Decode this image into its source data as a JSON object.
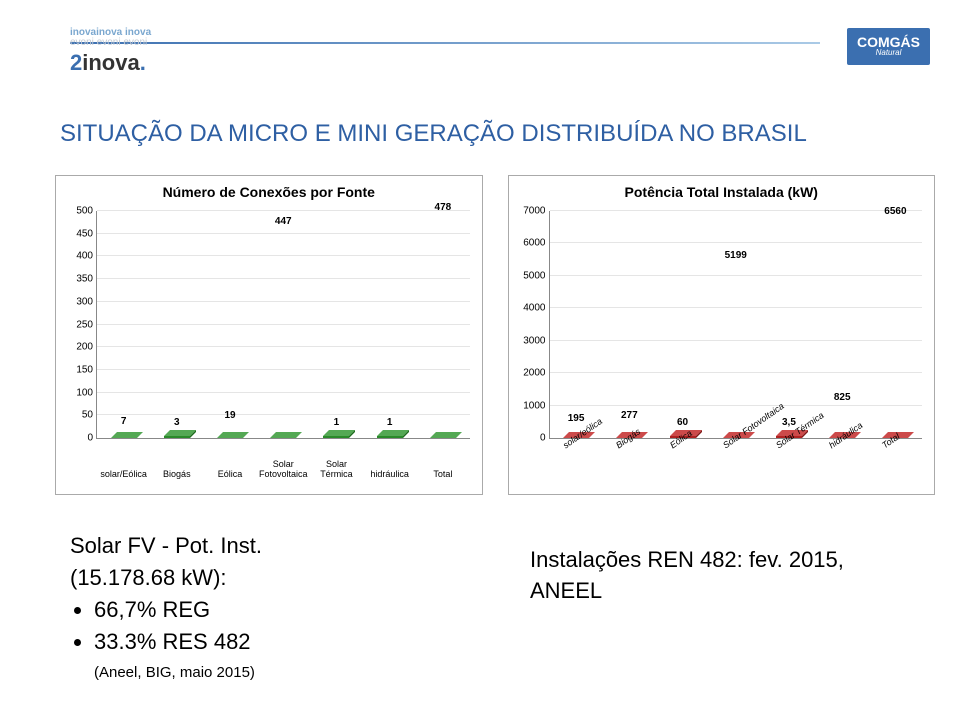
{
  "header": {
    "logo_left_cloud_lines": [
      "inovainova inova",
      "evoni evoni evoni"
    ],
    "logo_left_cloud_colors": [
      "#7aa7cf",
      "#c1c9d2"
    ],
    "logo_left_two": "2",
    "logo_left_inova": "inova",
    "logo_left_dot": ".",
    "logo_right": "COMGÁS",
    "logo_right_sub": "Natural",
    "logo_right_bg": "#3b6fb0"
  },
  "title": "SITUAÇÃO DA MICRO E MINI GERAÇÃO DISTRIBUÍDA NO BRASIL",
  "chart1": {
    "type": "bar",
    "title": "Número de Conexões por Fonte",
    "categories": [
      "solar/Eólica",
      "Biogás",
      "Eólica",
      "Solar\nFotovoltaica",
      "Solar\nTérmica",
      "hidráulica",
      "Total"
    ],
    "values": [
      7,
      3,
      19,
      447,
      1,
      1,
      478
    ],
    "ymax": 500,
    "ytick_step": 50,
    "bar_color": "#2a8a2a",
    "bar_top": "#54a854",
    "bar_side": "#1d6b1d",
    "bg": "#ffffff",
    "grid_color": "#e5e5e5",
    "label_fontsize": 10,
    "title_fontsize": 14,
    "rotate_xlabels": false
  },
  "chart2": {
    "type": "bar",
    "title": "Potência Total Instalada (kW)",
    "categories": [
      "solar/eólica",
      "Biogás",
      "Eólica",
      "Solar Fotovoltaica",
      "Solar Térmica",
      "hidráulica",
      "Total"
    ],
    "values": [
      195,
      277,
      60,
      5199,
      3.5,
      825,
      6560
    ],
    "value_labels": [
      "195",
      "277",
      "60",
      "5199",
      "3,5",
      "825",
      "6560"
    ],
    "ymax": 7000,
    "ytick_step": 1000,
    "bar_color": "#b02222",
    "bar_top": "#cc4a4a",
    "bar_side": "#801515",
    "bg": "#ffffff",
    "grid_color": "#e5e5e5",
    "label_fontsize": 10,
    "title_fontsize": 14,
    "rotate_xlabels": true
  },
  "bottom_left": {
    "line1": "Solar FV - Pot. Inst.",
    "line2": "(15.178.68 kW):",
    "bullet1": "66,7% REG",
    "bullet2": "33.3% RES 482",
    "small": "(Aneel, BIG, maio 2015)"
  },
  "bottom_right": {
    "line1": "Instalações REN 482: fev. 2015,",
    "line2": "ANEEL"
  }
}
